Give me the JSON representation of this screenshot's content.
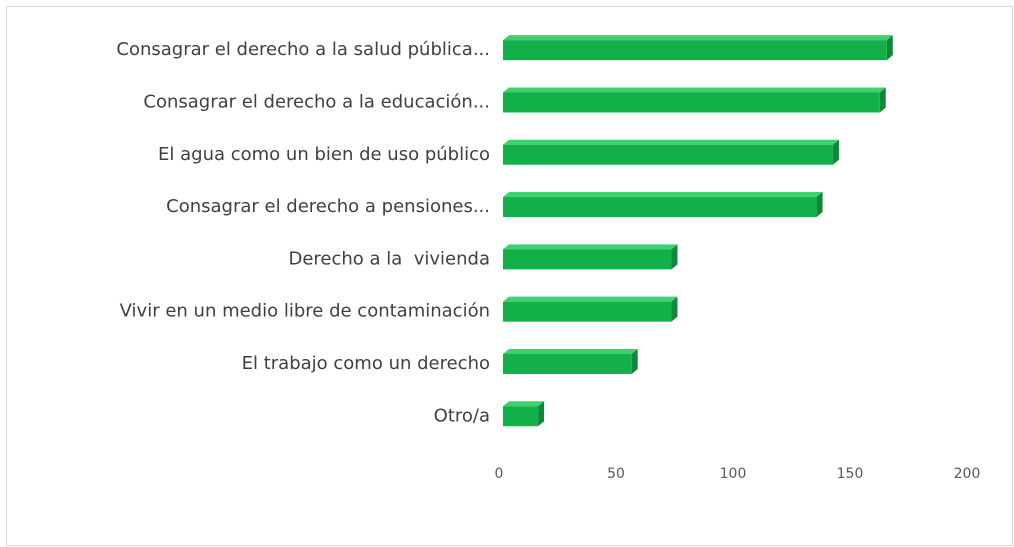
{
  "chart_data": {
    "type": "bar3d_horizontal",
    "categories": [
      "Consagrar el derecho a la salud pública...",
      "Consagrar el derecho a la educación...",
      "El agua como un bien de uso público",
      "Consagrar el derecho a pensiones...",
      "Derecho a la  vivienda",
      "Vivir en un medio libre de contaminación",
      "El trabajo como un derecho",
      "Otro/a"
    ],
    "values": [
      164,
      161,
      141,
      134,
      72,
      72,
      55,
      15
    ],
    "color": "#13b04a",
    "xlim": [
      0,
      200
    ],
    "xticks": [
      0,
      50,
      100,
      150,
      200
    ],
    "grid": false
  }
}
